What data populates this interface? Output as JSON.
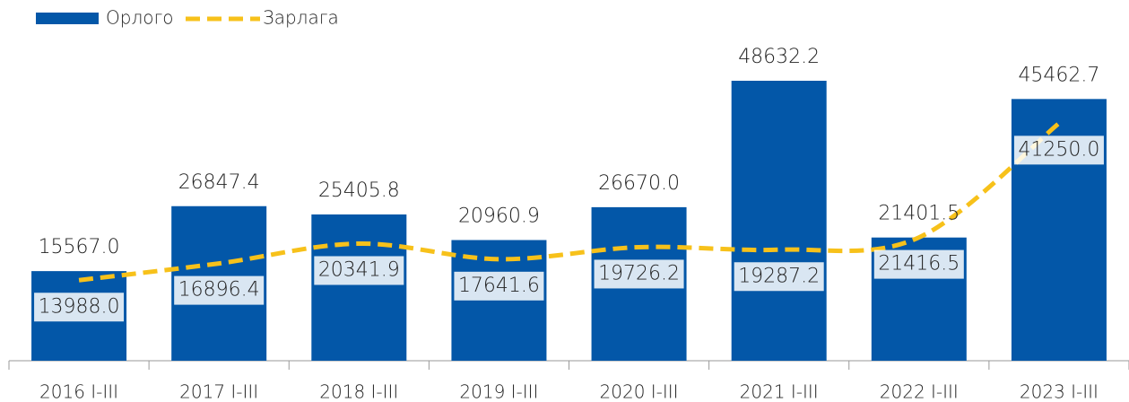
{
  "chart_data": {
    "type": "bar",
    "categories": [
      "2016 I-III",
      "2017 I-III",
      "2018 I-III",
      "2019 I-III",
      "2020 I-III",
      "2021 I-III",
      "2022 I-III",
      "2023 I-III"
    ],
    "series": [
      {
        "name": "Орлого",
        "type": "bar",
        "color": "#0357a8",
        "values": [
          15567.0,
          26847.4,
          25405.8,
          20960.9,
          26670.0,
          48632.2,
          21401.5,
          45462.7
        ],
        "value_labels": [
          "15567.0",
          "26847.4",
          "25405.8",
          "20960.9",
          "26670.0",
          "48632.2",
          "21401.5",
          "45462.7"
        ]
      },
      {
        "name": "Зарлага",
        "type": "line",
        "color": "#f7c11a",
        "values": [
          13988.0,
          16896.4,
          20341.9,
          17641.6,
          19726.2,
          19287.2,
          21416.5,
          41250.0
        ],
        "value_labels": [
          "13988.0",
          "16896.4",
          "20341.9",
          "17641.6",
          "19726.2",
          "19287.2",
          "21416.5",
          "41250.0"
        ]
      }
    ],
    "legend": "top-left"
  }
}
